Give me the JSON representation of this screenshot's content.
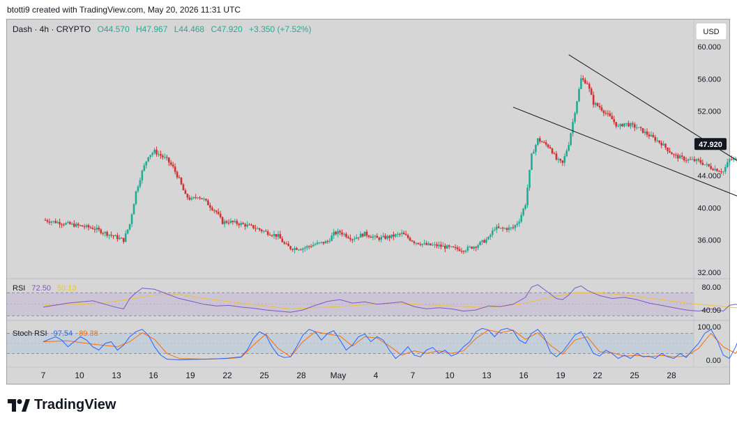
{
  "attribution": "btotti9 created with TradingView.com, May 20, 2026 11:31 UTC",
  "brand": "TradingView",
  "header": {
    "symbol": "Dash · 4h · CRYPTO",
    "open": "O44.570",
    "high": "H47.967",
    "low": "L44.468",
    "close": "C47.920",
    "change": "+3.350 (+7.52%)"
  },
  "currency": "USD",
  "colors": {
    "up": "#22ab94",
    "down": "#d32f2f",
    "rsi": "#7e57c2",
    "rsi_ma": "#f0c232",
    "stoch_k": "#2962ff",
    "stoch_d": "#ff6d00",
    "price_badge": "#131722",
    "pane_bg": "#d6d6d6"
  },
  "chart_data": {
    "type": "candlestick",
    "price_axis": {
      "ticks": [
        "60.000",
        "56.000",
        "52.000",
        "48.000",
        "44.000",
        "40.000",
        "36.000",
        "32.000"
      ],
      "ylim": [
        32,
        60
      ],
      "last_price": "47.920"
    },
    "time_axis": {
      "labels": [
        "7",
        "10",
        "13",
        "16",
        "19",
        "22",
        "25",
        "28",
        "May",
        "4",
        "7",
        "10",
        "13",
        "16",
        "19",
        "22",
        "25",
        "28"
      ]
    },
    "price_series": [
      [
        0,
        38.5
      ],
      [
        2,
        38.0
      ],
      [
        4,
        37.5
      ],
      [
        5.5,
        36.6
      ],
      [
        6.5,
        36.0
      ],
      [
        7,
        38.0
      ],
      [
        7.5,
        42.0
      ],
      [
        8,
        44.5
      ],
      [
        8.5,
        46.5
      ],
      [
        9,
        47.0
      ],
      [
        9.5,
        46.5
      ],
      [
        10,
        46.0
      ],
      [
        10.5,
        45.0
      ],
      [
        11,
        43.5
      ],
      [
        11.5,
        41.5
      ],
      [
        12,
        41.0
      ],
      [
        12.5,
        41.5
      ],
      [
        13,
        41.0
      ],
      [
        13.5,
        40.2
      ],
      [
        14,
        39.5
      ],
      [
        14.5,
        38.2
      ],
      [
        15,
        38.3
      ],
      [
        16,
        38.0
      ],
      [
        17,
        37.6
      ],
      [
        18,
        37.0
      ],
      [
        19,
        36.5
      ],
      [
        19.5,
        35.5
      ],
      [
        20,
        35.0
      ],
      [
        21,
        35.0
      ],
      [
        22,
        35.5
      ],
      [
        23,
        35.8
      ],
      [
        23.5,
        36.8
      ],
      [
        24,
        37.0
      ],
      [
        25,
        36.2
      ],
      [
        26,
        36.8
      ],
      [
        27,
        36.2
      ],
      [
        28,
        36.4
      ],
      [
        29,
        36.8
      ],
      [
        30,
        35.8
      ],
      [
        31,
        35.4
      ],
      [
        32,
        35.3
      ],
      [
        33,
        35.0
      ],
      [
        34,
        34.8
      ],
      [
        35,
        35.3
      ],
      [
        36,
        36.2
      ],
      [
        36.5,
        37.5
      ],
      [
        37,
        37.4
      ],
      [
        38,
        37.5
      ],
      [
        38.5,
        38.5
      ],
      [
        39,
        40.5
      ],
      [
        39.5,
        46.5
      ],
      [
        40,
        48.5
      ],
      [
        41,
        47.5
      ],
      [
        41.5,
        46.0
      ],
      [
        42,
        45.5
      ],
      [
        42.5,
        48.0
      ],
      [
        43,
        52.0
      ],
      [
        43.5,
        56.0
      ],
      [
        44,
        55.5
      ],
      [
        44.5,
        53.0
      ],
      [
        45,
        52.5
      ],
      [
        46,
        51.0
      ],
      [
        46.5,
        50.0
      ],
      [
        47,
        50.5
      ],
      [
        48,
        50.0
      ],
      [
        49,
        49.0
      ],
      [
        50,
        48.0
      ],
      [
        51,
        46.5
      ],
      [
        52,
        46.0
      ],
      [
        53,
        45.8
      ],
      [
        54,
        45.0
      ],
      [
        55,
        44.5
      ],
      [
        55.5,
        46.0
      ],
      [
        56,
        46.0
      ],
      [
        57,
        45.0
      ],
      [
        58,
        43.5
      ],
      [
        59,
        41.5
      ],
      [
        60,
        41.0
      ],
      [
        61,
        41.5
      ],
      [
        62,
        41.5
      ],
      [
        62.5,
        41.0
      ],
      [
        63,
        41.5
      ],
      [
        64,
        42.5
      ],
      [
        65,
        42.5
      ],
      [
        65.5,
        42.8
      ],
      [
        66,
        43.0
      ],
      [
        66.5,
        44.5
      ],
      [
        67,
        47.9
      ]
    ],
    "trendlines": [
      {
        "name": "upper",
        "from": [
          42.5,
          59.0
        ],
        "to": [
          62.0,
          40.2
        ]
      },
      {
        "name": "lower",
        "from": [
          38.0,
          52.5
        ],
        "to": [
          61.0,
          38.5
        ]
      }
    ],
    "rsi": {
      "label": "RSI",
      "value": "72.50",
      "ma_value": "50.13",
      "ticks": [
        "80.00",
        "40.00"
      ],
      "ylim": [
        20,
        95
      ],
      "bands": [
        70,
        50,
        30
      ],
      "series": [
        [
          0,
          45
        ],
        [
          2,
          52
        ],
        [
          4,
          56
        ],
        [
          5,
          50
        ],
        [
          6,
          44
        ],
        [
          6.5,
          42
        ],
        [
          7,
          60
        ],
        [
          7.5,
          70
        ],
        [
          8,
          78
        ],
        [
          9,
          76
        ],
        [
          10,
          68
        ],
        [
          11,
          60
        ],
        [
          12,
          55
        ],
        [
          13,
          50
        ],
        [
          14,
          47
        ],
        [
          15,
          48
        ],
        [
          16,
          45
        ],
        [
          17,
          43
        ],
        [
          18,
          40
        ],
        [
          19,
          38
        ],
        [
          20,
          36
        ],
        [
          21,
          40
        ],
        [
          22,
          48
        ],
        [
          23,
          55
        ],
        [
          24,
          58
        ],
        [
          25,
          52
        ],
        [
          26,
          54
        ],
        [
          27,
          50
        ],
        [
          28,
          52
        ],
        [
          29,
          54
        ],
        [
          30,
          46
        ],
        [
          31,
          42
        ],
        [
          32,
          44
        ],
        [
          33,
          42
        ],
        [
          34,
          38
        ],
        [
          35,
          40
        ],
        [
          36,
          47
        ],
        [
          37,
          46
        ],
        [
          38,
          50
        ],
        [
          39,
          62
        ],
        [
          39.5,
          80
        ],
        [
          40,
          84
        ],
        [
          41,
          68
        ],
        [
          41.5,
          60
        ],
        [
          42,
          58
        ],
        [
          42.5,
          66
        ],
        [
          43,
          78
        ],
        [
          43.5,
          82
        ],
        [
          44,
          74
        ],
        [
          45,
          65
        ],
        [
          46,
          60
        ],
        [
          47,
          62
        ],
        [
          48,
          58
        ],
        [
          49,
          52
        ],
        [
          50,
          48
        ],
        [
          51,
          44
        ],
        [
          52,
          40
        ],
        [
          53,
          38
        ],
        [
          54,
          42
        ],
        [
          55,
          38
        ],
        [
          55.5,
          48
        ],
        [
          56,
          50
        ],
        [
          57,
          44
        ],
        [
          58,
          38
        ],
        [
          59,
          34
        ],
        [
          60,
          36
        ],
        [
          61,
          40
        ],
        [
          62,
          37
        ],
        [
          63,
          42
        ],
        [
          64,
          46
        ],
        [
          65,
          44
        ],
        [
          65.5,
          44
        ],
        [
          66,
          50
        ],
        [
          66.5,
          58
        ],
        [
          67,
          72.5
        ]
      ],
      "ma_series": [
        [
          0,
          48
        ],
        [
          5,
          52
        ],
        [
          9,
          66
        ],
        [
          11,
          67
        ],
        [
          13,
          60
        ],
        [
          16,
          52
        ],
        [
          20,
          42
        ],
        [
          24,
          46
        ],
        [
          28,
          52
        ],
        [
          32,
          48
        ],
        [
          36,
          44
        ],
        [
          39,
          52
        ],
        [
          41,
          62
        ],
        [
          43,
          70
        ],
        [
          45,
          70
        ],
        [
          48,
          64
        ],
        [
          52,
          52
        ],
        [
          56,
          44
        ],
        [
          60,
          40
        ],
        [
          64,
          40
        ],
        [
          67,
          50
        ]
      ]
    },
    "stoch_rsi": {
      "label": "Stoch RSI",
      "k_value": "97.54",
      "d_value": "89.38",
      "ticks": [
        "100.00",
        "0.00"
      ],
      "ylim": [
        -10,
        110
      ],
      "bands": [
        80,
        50,
        20
      ],
      "k_series": [
        [
          0,
          55
        ],
        [
          1,
          70
        ],
        [
          1.5,
          60
        ],
        [
          2,
          40
        ],
        [
          2.5,
          55
        ],
        [
          3,
          70
        ],
        [
          3.5,
          60
        ],
        [
          4,
          40
        ],
        [
          4.5,
          30
        ],
        [
          5,
          50
        ],
        [
          5.5,
          55
        ],
        [
          6,
          30
        ],
        [
          6.5,
          45
        ],
        [
          7,
          70
        ],
        [
          7.5,
          85
        ],
        [
          8,
          92
        ],
        [
          8.5,
          75
        ],
        [
          9,
          40
        ],
        [
          9.5,
          15
        ],
        [
          10,
          3
        ],
        [
          11,
          1
        ],
        [
          12,
          2
        ],
        [
          13,
          3
        ],
        [
          14,
          4
        ],
        [
          15,
          6
        ],
        [
          16,
          10
        ],
        [
          16.5,
          30
        ],
        [
          17,
          65
        ],
        [
          17.5,
          85
        ],
        [
          18,
          75
        ],
        [
          18.5,
          40
        ],
        [
          19,
          15
        ],
        [
          19.5,
          8
        ],
        [
          20,
          10
        ],
        [
          20.5,
          40
        ],
        [
          21,
          75
        ],
        [
          21.5,
          92
        ],
        [
          22,
          85
        ],
        [
          22.5,
          60
        ],
        [
          23,
          80
        ],
        [
          23.5,
          88
        ],
        [
          24,
          60
        ],
        [
          24.5,
          30
        ],
        [
          25,
          45
        ],
        [
          25.5,
          70
        ],
        [
          26,
          78
        ],
        [
          26.5,
          55
        ],
        [
          27,
          70
        ],
        [
          27.5,
          60
        ],
        [
          28,
          30
        ],
        [
          28.5,
          5
        ],
        [
          29,
          20
        ],
        [
          29.5,
          40
        ],
        [
          30,
          15
        ],
        [
          30.5,
          10
        ],
        [
          31,
          30
        ],
        [
          31.5,
          38
        ],
        [
          32,
          20
        ],
        [
          32.5,
          30
        ],
        [
          33,
          12
        ],
        [
          33.5,
          20
        ],
        [
          34,
          40
        ],
        [
          34.5,
          55
        ],
        [
          35,
          85
        ],
        [
          35.5,
          95
        ],
        [
          36,
          90
        ],
        [
          36.5,
          70
        ],
        [
          37,
          90
        ],
        [
          37.5,
          95
        ],
        [
          38,
          88
        ],
        [
          38.5,
          60
        ],
        [
          39,
          50
        ],
        [
          39.5,
          80
        ],
        [
          40,
          92
        ],
        [
          40.5,
          70
        ],
        [
          41,
          25
        ],
        [
          41.5,
          10
        ],
        [
          42,
          25
        ],
        [
          42.5,
          50
        ],
        [
          43,
          75
        ],
        [
          43.5,
          85
        ],
        [
          44,
          55
        ],
        [
          44.5,
          20
        ],
        [
          45,
          12
        ],
        [
          45.5,
          30
        ],
        [
          46,
          20
        ],
        [
          46.5,
          5
        ],
        [
          47,
          15
        ],
        [
          47.5,
          5
        ],
        [
          48,
          20
        ],
        [
          48.5,
          10
        ],
        [
          49,
          12
        ],
        [
          49.5,
          5
        ],
        [
          50,
          20
        ],
        [
          50.5,
          10
        ],
        [
          51,
          5
        ],
        [
          51.5,
          20
        ],
        [
          52,
          8
        ],
        [
          52.5,
          30
        ],
        [
          53,
          50
        ],
        [
          53.5,
          80
        ],
        [
          54,
          92
        ],
        [
          54.5,
          60
        ],
        [
          55,
          15
        ],
        [
          55.5,
          5
        ],
        [
          56,
          40
        ],
        [
          56.5,
          85
        ],
        [
          57,
          95
        ],
        [
          57.5,
          85
        ],
        [
          58,
          50
        ],
        [
          58.5,
          10
        ],
        [
          59,
          2
        ],
        [
          59.5,
          10
        ],
        [
          60,
          20
        ],
        [
          60.5,
          40
        ],
        [
          61,
          30
        ],
        [
          61.5,
          45
        ],
        [
          62,
          50
        ],
        [
          62.5,
          70
        ],
        [
          63,
          88
        ],
        [
          63.5,
          92
        ],
        [
          64,
          95
        ],
        [
          64.5,
          85
        ],
        [
          65,
          80
        ],
        [
          65.5,
          90
        ],
        [
          66,
          92
        ],
        [
          66.5,
          96
        ],
        [
          67,
          97.54
        ]
      ],
      "d_series": [
        [
          0,
          55
        ],
        [
          2,
          58
        ],
        [
          4,
          48
        ],
        [
          6,
          40
        ],
        [
          7,
          55
        ],
        [
          8,
          82
        ],
        [
          9,
          62
        ],
        [
          10,
          20
        ],
        [
          11,
          5
        ],
        [
          13,
          3
        ],
        [
          15,
          5
        ],
        [
          16,
          8
        ],
        [
          17,
          45
        ],
        [
          18,
          78
        ],
        [
          19,
          35
        ],
        [
          20,
          10
        ],
        [
          21,
          55
        ],
        [
          22,
          85
        ],
        [
          23,
          78
        ],
        [
          24,
          72
        ],
        [
          25,
          42
        ],
        [
          26,
          70
        ],
        [
          27,
          66
        ],
        [
          28,
          42
        ],
        [
          29,
          15
        ],
        [
          30,
          28
        ],
        [
          31,
          20
        ],
        [
          32,
          28
        ],
        [
          33,
          20
        ],
        [
          34,
          28
        ],
        [
          35,
          65
        ],
        [
          36,
          90
        ],
        [
          37,
          82
        ],
        [
          38,
          90
        ],
        [
          39,
          62
        ],
        [
          40,
          82
        ],
        [
          41,
          45
        ],
        [
          42,
          18
        ],
        [
          43,
          60
        ],
        [
          44,
          70
        ],
        [
          45,
          25
        ],
        [
          46,
          22
        ],
        [
          47,
          12
        ],
        [
          48,
          14
        ],
        [
          49,
          10
        ],
        [
          50,
          14
        ],
        [
          51,
          10
        ],
        [
          52,
          12
        ],
        [
          53,
          35
        ],
        [
          54,
          80
        ],
        [
          55,
          40
        ],
        [
          56,
          20
        ],
        [
          57,
          80
        ],
        [
          58,
          70
        ],
        [
          59,
          15
        ],
        [
          60,
          10
        ],
        [
          61,
          30
        ],
        [
          62,
          45
        ],
        [
          63,
          75
        ],
        [
          64,
          92
        ],
        [
          65,
          85
        ],
        [
          66,
          88
        ],
        [
          67,
          89.38
        ]
      ]
    }
  }
}
